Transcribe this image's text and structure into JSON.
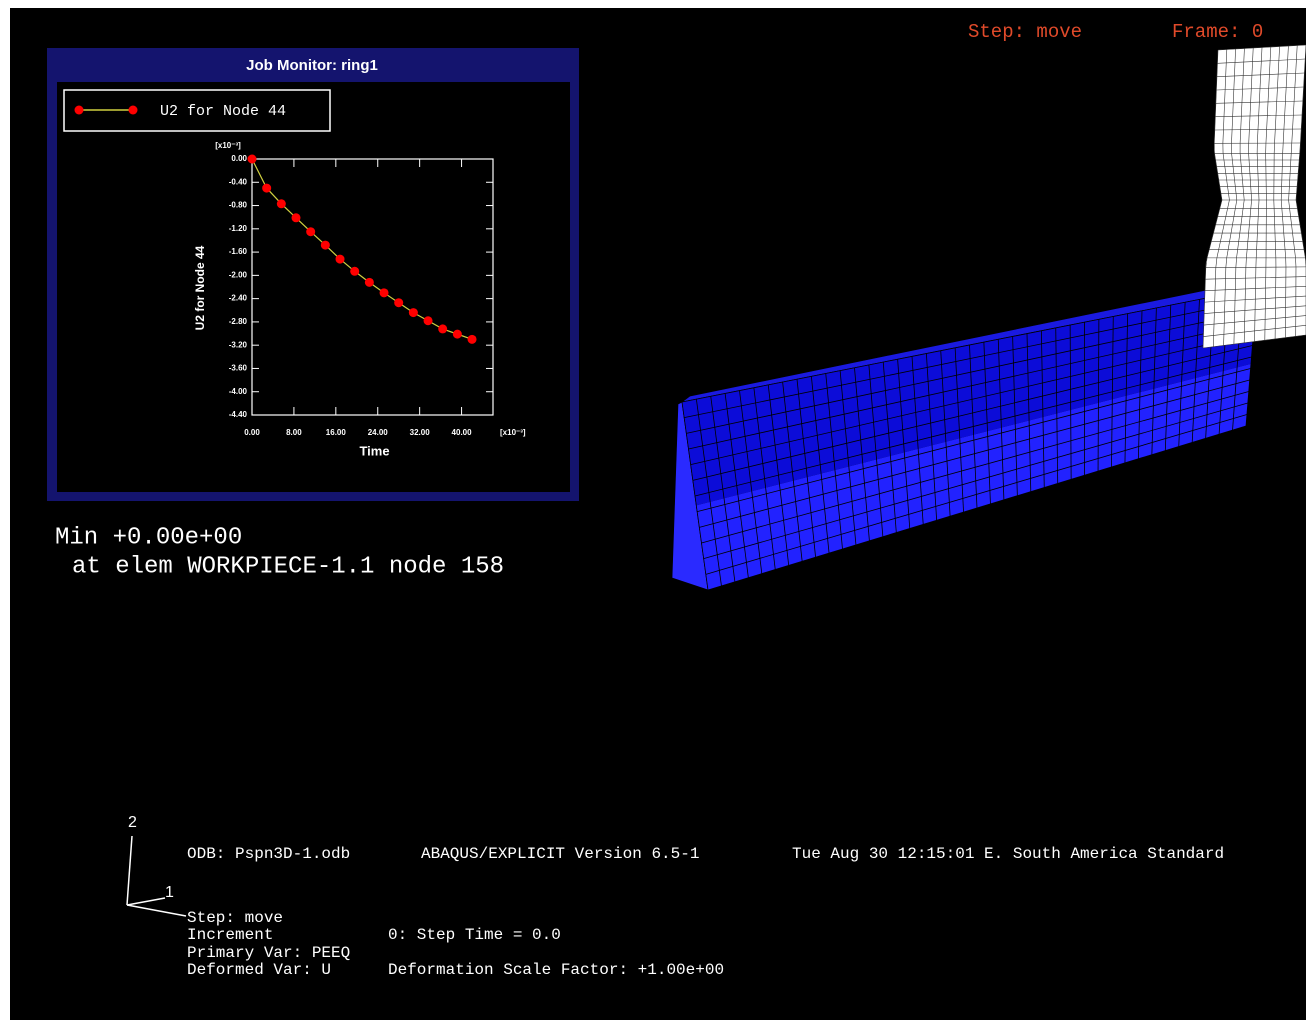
{
  "window": {
    "title": "Job Monitor: ring1"
  },
  "overlay": {
    "step": "Step: move",
    "frame": "Frame: 0",
    "min_line": "Min +0.00e+00",
    "min_location": "at elem WORKPIECE-1.1 node 158",
    "odb": "ODB: Pspn3D-1.odb",
    "version": "ABAQUS/EXPLICIT Version 6.5-1",
    "date": "Tue Aug 30 12:15:01 E. South America Standard",
    "info_step": "Step: move",
    "increment": "Increment",
    "step_time": "0: Step Time = 0.0",
    "primary_var": "Primary Var: PEEQ",
    "deformed_var": "Deformed Var: U",
    "scale_factor": "Deformation Scale Factor: +1.00e+00",
    "triad_2": "2",
    "triad_1": "1"
  },
  "chart_data": {
    "type": "line",
    "x_label": "Time",
    "y_label": "U2 for Node 44",
    "x_multiplier": "[x10⁻³]",
    "y_multiplier": "[x10⁻³]",
    "x": [
      0,
      2.8,
      5.6,
      8.4,
      11.2,
      14,
      16.8,
      19.6,
      22.4,
      25.2,
      28,
      30.8,
      33.6,
      36.4,
      39.2,
      42
    ],
    "series": [
      {
        "name": "U2 for Node 44",
        "color": "#ff0000",
        "line_color": "#d0d040",
        "values": [
          0,
          -0.5,
          -0.77,
          -1.01,
          -1.25,
          -1.48,
          -1.72,
          -1.93,
          -2.12,
          -2.3,
          -2.47,
          -2.64,
          -2.78,
          -2.92,
          -3.01,
          -3.1
        ]
      }
    ],
    "xlim": [
      0,
      46
    ],
    "xticks": [
      {
        "value": 0,
        "label": "0.00"
      },
      {
        "value": 8,
        "label": "8.00"
      },
      {
        "value": 16,
        "label": "16.00"
      },
      {
        "value": 24,
        "label": "24.00"
      },
      {
        "value": 32,
        "label": "32.00"
      },
      {
        "value": 40,
        "label": "40.00"
      }
    ],
    "ylim": [
      -4.4,
      0
    ],
    "yticks": [
      {
        "value": 0,
        "label": "0.00"
      },
      {
        "value": -0.4,
        "label": "-0.40"
      },
      {
        "value": -0.8,
        "label": "-0.80"
      },
      {
        "value": -1.2,
        "label": "-1.20"
      },
      {
        "value": -1.6,
        "label": "-1.60"
      },
      {
        "value": -2,
        "label": "-2.00"
      },
      {
        "value": -2.4,
        "label": "-2.40"
      },
      {
        "value": -2.8,
        "label": "-2.80"
      },
      {
        "value": -3.2,
        "label": "-3.20"
      },
      {
        "value": -3.6,
        "label": "-3.60"
      },
      {
        "value": -4,
        "label": "-4.00"
      },
      {
        "value": -4.4,
        "label": "-4.40"
      }
    ]
  }
}
